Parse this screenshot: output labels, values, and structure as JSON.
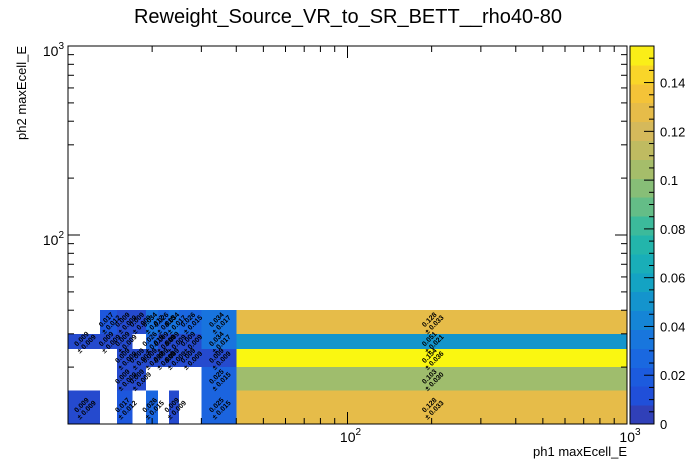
{
  "chart_data": {
    "type": "heatmap",
    "title": "Reweight_Source_VR_to_SR_BETT__rho40-80",
    "xlabel": "ph1 maxEcell_E",
    "ylabel": "ph2 maxEcell_E",
    "x_scale": "log",
    "y_scale": "log",
    "xlim": [
      10,
      1000
    ],
    "ylim": [
      10,
      1000
    ],
    "x_tick_labels": [
      "10^2",
      "10^3"
    ],
    "y_tick_labels": [
      "10^2",
      "10^3"
    ],
    "zlim": [
      0,
      0.155
    ],
    "colorbar_ticks": [
      0,
      0.02,
      0.04,
      0.06,
      0.08,
      0.1,
      0.12,
      0.14
    ],
    "colorbar_tick_labels": [
      "0",
      "0.02",
      "0.04",
      "0.06",
      "0.08",
      "0.1",
      "0.12",
      "0.14"
    ],
    "x_edges": [
      10,
      13,
      15,
      17,
      19,
      21,
      23,
      25,
      30,
      40,
      1000
    ],
    "y_edges": [
      10,
      15,
      20,
      25,
      30,
      40,
      1000
    ],
    "cells": [
      {
        "xi": 0,
        "yi": 0,
        "value": 0.009,
        "error": 0.009
      },
      {
        "xi": 2,
        "yi": 0,
        "value": 0.017,
        "error": 0.012
      },
      {
        "xi": 4,
        "yi": 0,
        "value": 0.026,
        "error": 0.015
      },
      {
        "xi": 6,
        "yi": 0,
        "value": 0.009,
        "error": 0.009
      },
      {
        "xi": 8,
        "yi": 0,
        "value": 0.025,
        "error": 0.015
      },
      {
        "xi": 9,
        "yi": 0,
        "value": 0.128,
        "error": 0.033
      },
      {
        "xi": 2,
        "yi": 1,
        "value": 0.009,
        "error": 0.009
      },
      {
        "xi": 3,
        "yi": 1,
        "value": 0.009,
        "error": 0.009
      },
      {
        "xi": 8,
        "yi": 1,
        "value": 0.025,
        "error": 0.015
      },
      {
        "xi": 9,
        "yi": 1,
        "value": 0.103,
        "error": 0.03
      },
      {
        "xi": 2,
        "yi": 2,
        "value": 0.009,
        "error": 0.009
      },
      {
        "xi": 3,
        "yi": 2,
        "value": 0.009,
        "error": 0.007
      },
      {
        "xi": 4,
        "yi": 2,
        "value": 0.009,
        "error": 0.009
      },
      {
        "xi": 5,
        "yi": 2,
        "value": 0.009,
        "error": 0.009
      },
      {
        "xi": 6,
        "yi": 2,
        "value": 0.009,
        "error": 0.009
      },
      {
        "xi": 7,
        "yi": 2,
        "value": 0.009,
        "error": 0.009
      },
      {
        "xi": 8,
        "yi": 2,
        "value": 0.009,
        "error": 0.009
      },
      {
        "xi": 9,
        "yi": 2,
        "value": 0.154,
        "error": 0.036
      },
      {
        "xi": 0,
        "yi": 3,
        "value": 0.009,
        "error": 0.009
      },
      {
        "xi": 1,
        "yi": 3,
        "value": 0.009,
        "error": 0.009
      },
      {
        "xi": 2,
        "yi": 3,
        "value": 0.009,
        "error": 0.009
      },
      {
        "xi": 4,
        "yi": 3,
        "value": 0.026,
        "error": 0.015
      },
      {
        "xi": 5,
        "yi": 3,
        "value": 0.009,
        "error": 0.009
      },
      {
        "xi": 6,
        "yi": 3,
        "value": 0.009,
        "error": 0.009
      },
      {
        "xi": 7,
        "yi": 3,
        "value": 0.009,
        "error": 0.009
      },
      {
        "xi": 8,
        "yi": 3,
        "value": 0.034,
        "error": 0.017
      },
      {
        "xi": 9,
        "yi": 3,
        "value": 0.051,
        "error": 0.021
      },
      {
        "xi": 1,
        "yi": 4,
        "value": 0.017,
        "error": 0.012
      },
      {
        "xi": 2,
        "yi": 4,
        "value": 0.009,
        "error": 0.009
      },
      {
        "xi": 3,
        "yi": 4,
        "value": 0.009,
        "error": 0.009
      },
      {
        "xi": 4,
        "yi": 4,
        "value": 0.034,
        "error": 0.017
      },
      {
        "xi": 5,
        "yi": 4,
        "value": 0.026,
        "error": 0.015
      },
      {
        "xi": 6,
        "yi": 4,
        "value": 0.034,
        "error": 0.017
      },
      {
        "xi": 7,
        "yi": 4,
        "value": 0.026,
        "error": 0.015
      },
      {
        "xi": 8,
        "yi": 4,
        "value": 0.034,
        "error": 0.017
      },
      {
        "xi": 9,
        "yi": 4,
        "value": 0.128,
        "error": 0.033
      }
    ]
  }
}
